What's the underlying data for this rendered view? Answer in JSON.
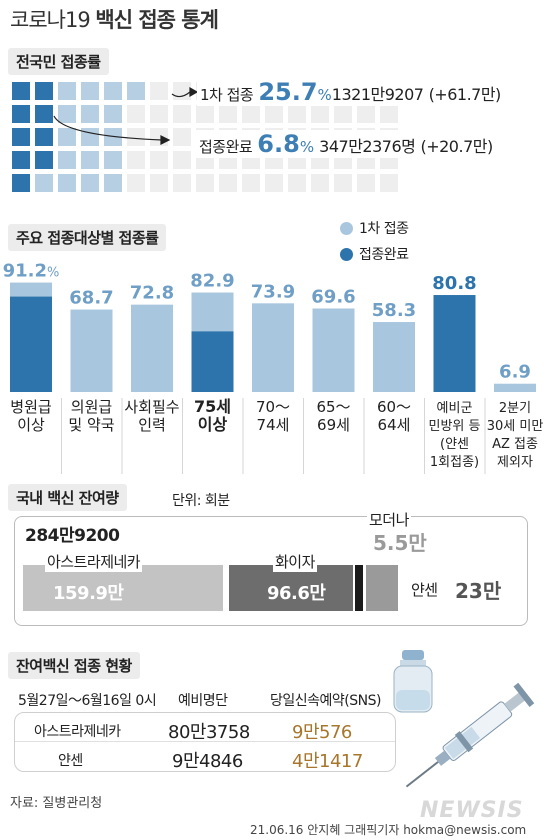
{
  "title_light": "코로나19",
  "title_bold": "백신 접종 통계",
  "section1": {
    "label": "전국민 접종률",
    "first_label": "1차 접종",
    "first_pct": "25.7",
    "first_pct_unit": "%",
    "first_count": "1321만9207",
    "first_change": "(+61.7만)",
    "full_label": "접종완료",
    "full_pct": "6.8",
    "full_pct_unit": "%",
    "full_count": "347만2376명",
    "full_change": "(+20.7만)"
  },
  "section2": {
    "label": "주요 접종대상별 접종률",
    "legend": {
      "first": "1차 접종",
      "full": "접종완료"
    }
  },
  "chart_data": {
    "type": "bar",
    "categories": [
      [
        "병원급",
        "이상"
      ],
      [
        "의원급",
        "및 약국"
      ],
      [
        "사회필수",
        "인력"
      ],
      [
        "75세",
        "이상"
      ],
      [
        "70～",
        "74세"
      ],
      [
        "65～",
        "69세"
      ],
      [
        "60～",
        "64세"
      ],
      [
        "예비군",
        "민방위 등",
        "(얀센",
        "1회접종)"
      ],
      [
        "2분기",
        "30세 미만",
        "AZ 접종",
        "제외자"
      ]
    ],
    "category_bold": [
      false,
      false,
      false,
      true,
      false,
      false,
      false,
      false,
      false
    ],
    "series": [
      {
        "name": "1차 접종",
        "values": [
          91.2,
          68.7,
          72.8,
          82.9,
          73.9,
          69.6,
          58.3,
          null,
          6.9
        ]
      },
      {
        "name": "접종완료",
        "values": [
          79.5,
          null,
          null,
          50.5,
          null,
          null,
          null,
          80.8,
          null
        ]
      }
    ],
    "data_labels": [
      "91.2",
      "68.7",
      "72.8",
      "82.9",
      "73.9",
      "69.6",
      "58.3",
      "80.8",
      "6.9"
    ],
    "first_label_unit": "%",
    "ylim": [
      0,
      100
    ],
    "colors": {
      "first": "#a9c6df",
      "full": "#2c74ab"
    }
  },
  "section3": {
    "label": "국내 백신 잔여량",
    "unit": "단위: 회분",
    "total": "284만9200",
    "items": [
      {
        "name": "아스트라제네카",
        "value": "159.9만",
        "amount": 159.9
      },
      {
        "name": "화이자",
        "value": "96.6만",
        "amount": 96.6
      },
      {
        "name": "모더나",
        "value": "5.5만",
        "amount": 5.5
      },
      {
        "name": "얀센",
        "value": "23만",
        "amount": 23
      }
    ]
  },
  "section4": {
    "label": "잔여백신 접종 현황",
    "period": "5월27일～6월16일 0시",
    "col1": "예비명단",
    "col2": "당일신속예약(SNS)",
    "rows": [
      {
        "name": "아스트라제네카",
        "reserve": "80만3758",
        "sns": "9만576"
      },
      {
        "name": "얀센",
        "reserve": "9만4846",
        "sns": "4만1417"
      }
    ]
  },
  "footer": {
    "source": "자료: 질병관리청",
    "credit": "21.06.16 안지혜 그래픽기자 hokma@newsis.com",
    "logo": "NEWSIS"
  }
}
